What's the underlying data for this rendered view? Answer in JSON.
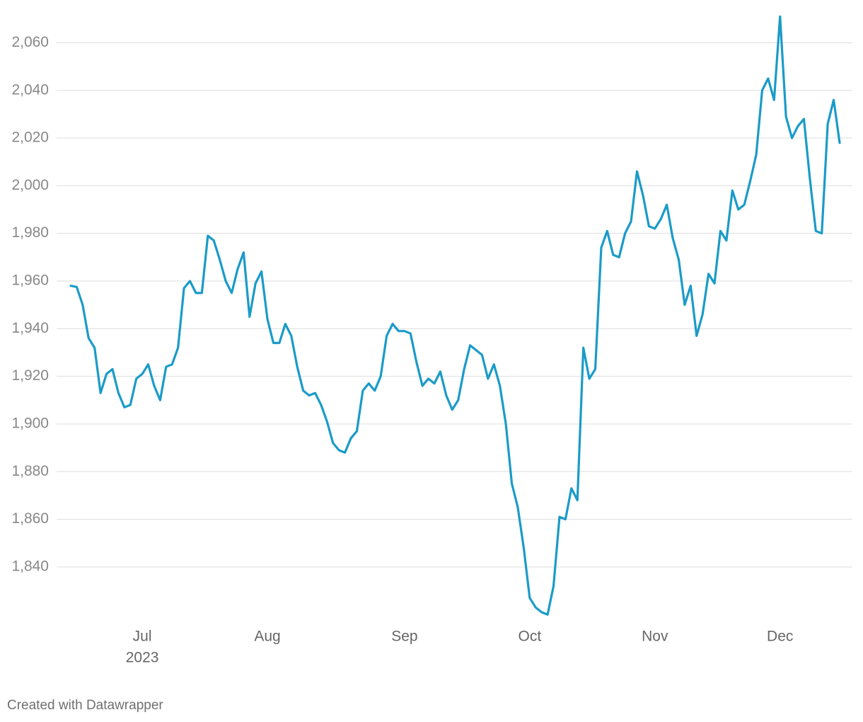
{
  "chart_data": {
    "type": "line",
    "categories": [
      null,
      null,
      null,
      null,
      null,
      null,
      null,
      null,
      null,
      null,
      null,
      null,
      "Jul",
      null,
      null,
      null,
      null,
      null,
      null,
      null,
      null,
      null,
      null,
      null,
      null,
      null,
      null,
      null,
      null,
      null,
      null,
      null,
      null,
      "Aug",
      null,
      null,
      null,
      null,
      null,
      null,
      null,
      null,
      null,
      null,
      null,
      null,
      null,
      null,
      null,
      null,
      null,
      null,
      null,
      null,
      null,
      null,
      "Sep",
      null,
      null,
      null,
      null,
      null,
      null,
      null,
      null,
      null,
      null,
      null,
      null,
      null,
      null,
      null,
      null,
      null,
      null,
      null,
      null,
      "Oct",
      null,
      null,
      null,
      null,
      null,
      null,
      null,
      null,
      null,
      null,
      null,
      null,
      null,
      null,
      null,
      null,
      null,
      null,
      null,
      null,
      "Nov",
      null,
      null,
      null,
      null,
      null,
      null,
      null,
      null,
      null,
      null,
      null,
      null,
      null,
      null,
      null,
      null,
      null,
      null,
      null,
      null,
      "Dec",
      null,
      null,
      null,
      null,
      null,
      null,
      null,
      null,
      null,
      null
    ],
    "year_label": "2023",
    "values": [
      1958,
      1957.5,
      1950,
      1936,
      1932,
      1913,
      1921,
      1923,
      1913,
      1907,
      1908,
      1919,
      1921,
      1925,
      1916,
      1910,
      1924,
      1925,
      1932,
      1957,
      1960,
      1955,
      1955,
      1979,
      1977,
      1969,
      1960,
      1955,
      1965,
      1972,
      1945,
      1959,
      1964,
      1944,
      1934,
      1934,
      1942,
      1937,
      1924,
      1914,
      1912,
      1913,
      1908,
      1901,
      1892,
      1889,
      1888,
      1894,
      1897,
      1914,
      1917,
      1914,
      1920,
      1937,
      1942,
      1939,
      1939,
      1938,
      1926,
      1916,
      1919,
      1917,
      1922,
      1912,
      1906,
      1910,
      1923,
      1933,
      1931,
      1929,
      1919,
      1925,
      1916,
      1900,
      1875,
      1865,
      1848,
      1827,
      1823,
      1821,
      1820,
      1832,
      1861,
      1860,
      1873,
      1868,
      1932,
      1919,
      1923,
      1974,
      1981,
      1971,
      1970,
      1980,
      1985,
      2006,
      1996,
      1983,
      1982,
      1986,
      1992,
      1978,
      1969,
      1950,
      1958,
      1937,
      1946,
      1963,
      1959,
      1981,
      1977,
      1998,
      1990,
      1992,
      2002,
      2013,
      2040,
      2045,
      2036,
      2071,
      2029,
      2020,
      2025,
      2028,
      2003,
      1981,
      1980,
      2026,
      2036,
      2018
    ],
    "color": "#1a9bc8",
    "ylim": [
      1818,
      2072
    ],
    "yticks": [
      {
        "value": 1840,
        "label": "1,840"
      },
      {
        "value": 1860,
        "label": "1,860"
      },
      {
        "value": 1880,
        "label": "1,880"
      },
      {
        "value": 1900,
        "label": "1,900"
      },
      {
        "value": 1920,
        "label": "1,920"
      },
      {
        "value": 1940,
        "label": "1,940"
      },
      {
        "value": 1960,
        "label": "1,960"
      },
      {
        "value": 1980,
        "label": "1,980"
      },
      {
        "value": 2000,
        "label": "2,000"
      },
      {
        "value": 2020,
        "label": "2,020"
      },
      {
        "value": 2040,
        "label": "2,040"
      },
      {
        "value": 2060,
        "label": "2,060"
      }
    ],
    "grid": true,
    "credit": "Created with Datawrapper"
  }
}
